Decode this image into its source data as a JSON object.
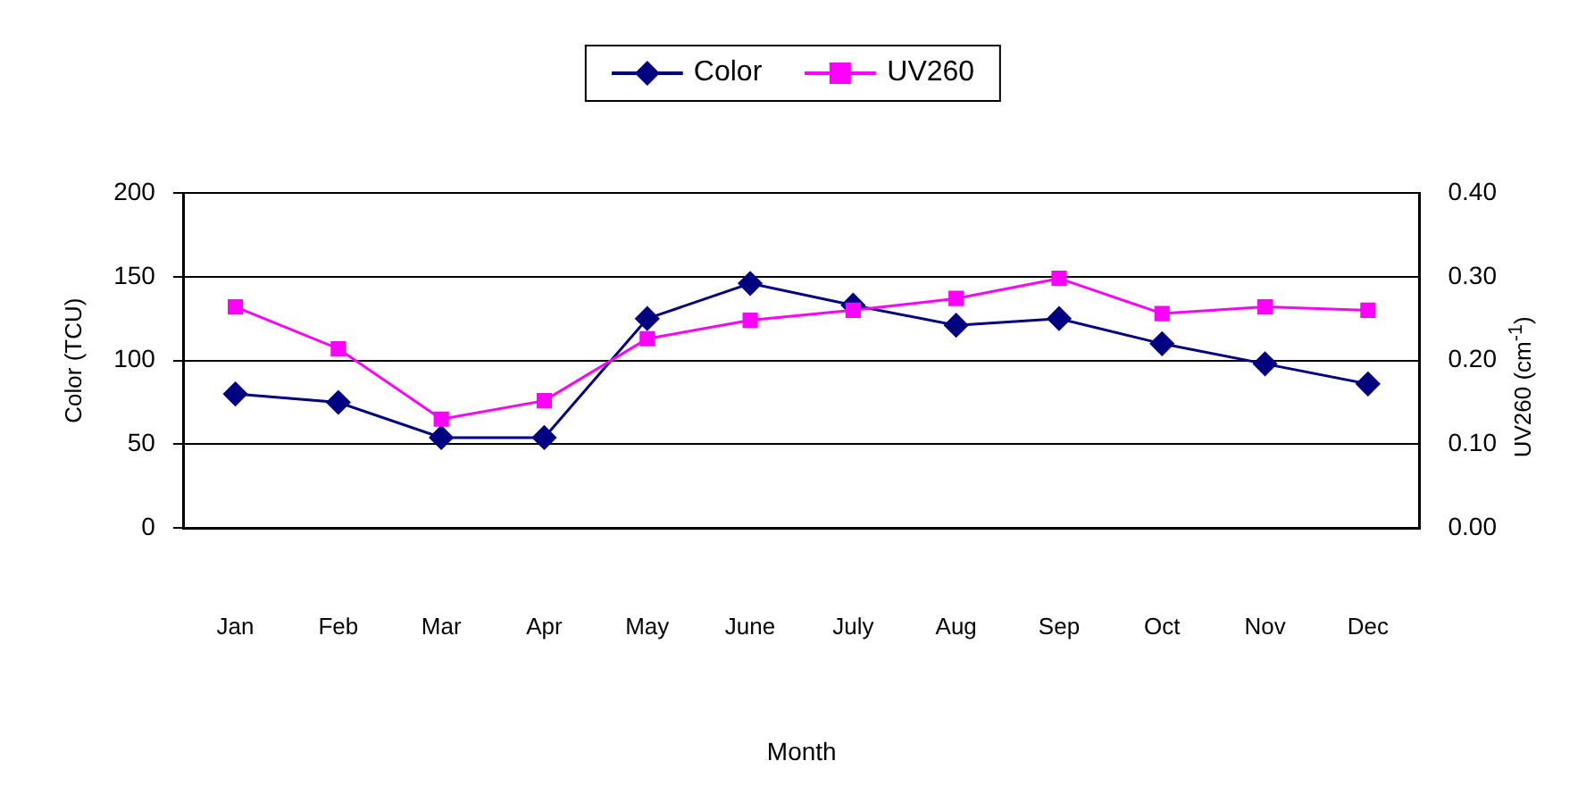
{
  "chart_data": {
    "type": "line",
    "xlabel": "Month",
    "ylabel": "Color (TCU)",
    "y2label": "UV260 (cm$^{-1}$)",
    "categories": [
      "Jan",
      "Feb",
      "Mar",
      "Apr",
      "May",
      "June",
      "July",
      "Aug",
      "Sep",
      "Oct",
      "Nov",
      "Dec"
    ],
    "series": [
      {
        "name": "Color",
        "color": "#000080",
        "marker": "diamond",
        "values": [
          80,
          75,
          54,
          54,
          125,
          146,
          133,
          121,
          125,
          110,
          98,
          86
        ]
      },
      {
        "name": "UV260",
        "color": "#ff00ff",
        "marker": "square",
        "axis": "y2",
        "values": [
          0.264,
          0.214,
          0.13,
          0.152,
          0.226,
          0.248,
          0.26,
          0.274,
          0.298,
          0.256,
          0.264,
          0.26
        ]
      }
    ],
    "ylim": [
      0,
      200
    ],
    "yticks": [
      0,
      50,
      100,
      150,
      200
    ],
    "y2lim": [
      0,
      0.4
    ],
    "y2ticks": [
      {
        "value": 0,
        "label": "0.00"
      },
      {
        "value": 0.1,
        "label": "0.10"
      },
      {
        "value": 0.2,
        "label": "0.20"
      },
      {
        "value": 0.3,
        "label": "0.30"
      },
      {
        "value": 0.4,
        "label": "0.40"
      }
    ],
    "grid": "y",
    "legend": "top"
  }
}
